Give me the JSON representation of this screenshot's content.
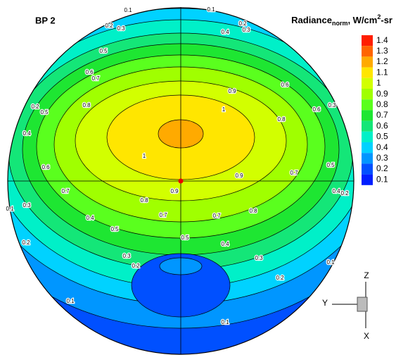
{
  "chart_data": {
    "type": "contour",
    "title": "BP 2",
    "colorbar": {
      "label": "Radiance",
      "label_sub": "norm",
      "label_unit": ", W/cm",
      "label_sup": "2",
      "label_end": "-sr",
      "levels": [
        1.4,
        1.3,
        1.2,
        1.1,
        1.0,
        0.9,
        0.8,
        0.7,
        0.6,
        0.5,
        0.4,
        0.3,
        0.2,
        0.1
      ],
      "colors": [
        "#ff1e00",
        "#ff6400",
        "#ffaa00",
        "#ffe600",
        "#d2ff00",
        "#a0ff00",
        "#5aff1e",
        "#1ee632",
        "#14e678",
        "#00f0c8",
        "#00d2ff",
        "#0096ff",
        "#0050ff",
        "#001eff"
      ]
    },
    "contour_levels": [
      0.1,
      0.2,
      0.3,
      0.4,
      0.5,
      0.6,
      0.7,
      0.8,
      0.9,
      1.0,
      1.1
    ],
    "axes_triad": {
      "up": "Z",
      "left": "Y",
      "down": "X"
    }
  }
}
